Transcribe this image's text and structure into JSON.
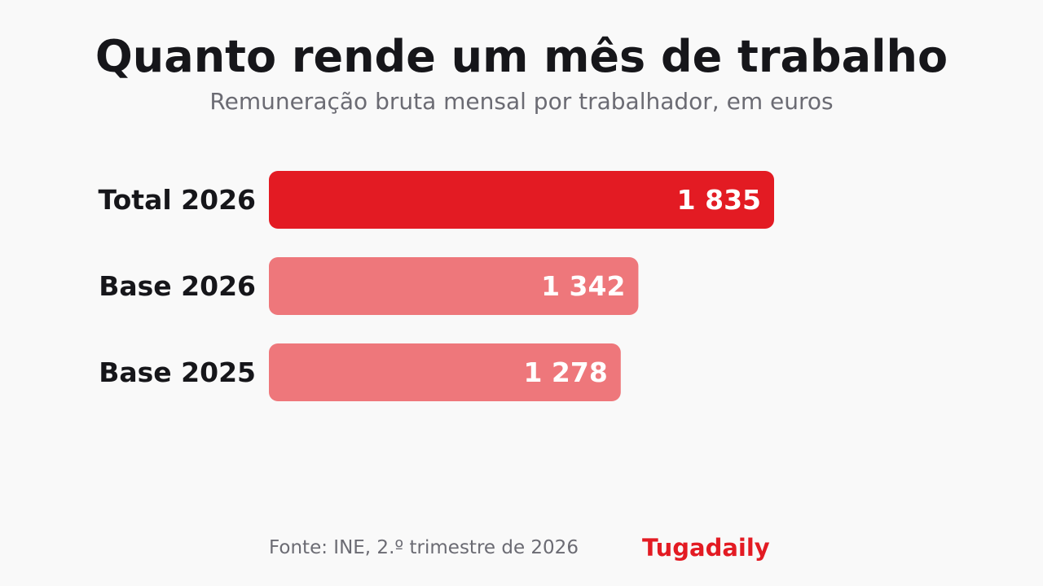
{
  "header": {
    "title": "Quanto rende um mês de trabalho",
    "subtitle": "Remuneração bruta mensal por trabalhador, em euros"
  },
  "footer": {
    "source": "Fonte: INE, 2.º trimestre de 2026",
    "brand": "Tugadaily"
  },
  "colors": {
    "highlight": "#e31b23",
    "muted": "#ee777b",
    "background": "#f9f9f9"
  },
  "chart_data": {
    "type": "bar",
    "orientation": "horizontal",
    "title": "Quanto rende um mês de trabalho",
    "subtitle": "Remuneração bruta mensal por trabalhador, em euros",
    "categories": [
      "Total 2026",
      "Base 2026",
      "Base 2025"
    ],
    "values": [
      1835,
      1342,
      1278
    ],
    "value_labels": [
      "1 835",
      "1 342",
      "1 278"
    ],
    "highlighted": [
      true,
      false,
      false
    ],
    "grid": false,
    "legend": "none"
  }
}
